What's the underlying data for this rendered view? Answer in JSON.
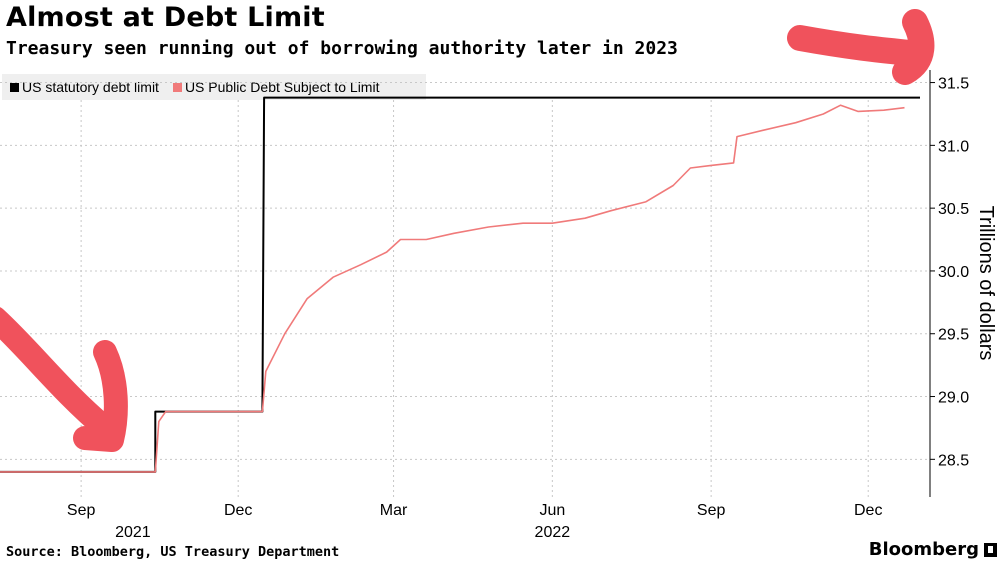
{
  "title": "Almost at Debt Limit",
  "subtitle": "Treasury seen running out of borrowing authority later in 2023",
  "source": "Source: Bloomberg, US Treasury Department",
  "brand": "Bloomberg",
  "colors": {
    "limit": "#000000",
    "debt": "#f07a7a",
    "annotation": "#f0525c",
    "grid": "#c8c8c8",
    "legend_bg": "#efefef"
  },
  "chart_data": {
    "type": "line",
    "title": "Almost at Debt Limit",
    "subtitle": "Treasury seen running out of borrowing authority later in 2023",
    "ylabel": "Trillions of dollars",
    "y_axis_side": "right",
    "ylim": [
      28.2,
      31.6
    ],
    "xlim": [
      "2021-07-16",
      "2022-12-31"
    ],
    "y_ticks": [
      28.5,
      29.0,
      29.5,
      30.0,
      30.5,
      31.0,
      31.5
    ],
    "y_tick_labels": [
      "28.5",
      "29.0",
      "29.5",
      "30.0",
      "30.5",
      "31.0",
      "31.5"
    ],
    "x_ticks": [
      {
        "date": "2021-09-01",
        "label": "Sep"
      },
      {
        "date": "2021-12-01",
        "label": "Dec"
      },
      {
        "date": "2022-03-01",
        "label": "Mar"
      },
      {
        "date": "2022-06-01",
        "label": "Jun"
      },
      {
        "date": "2022-09-01",
        "label": "Sep"
      },
      {
        "date": "2022-12-01",
        "label": "Dec"
      }
    ],
    "year_labels": [
      {
        "date": "2021-10-01",
        "label": "2021"
      },
      {
        "date": "2022-06-01",
        "label": "2022"
      }
    ],
    "grid": true,
    "legend_position": "top-left",
    "series": [
      {
        "name": "US statutory debt limit",
        "step": true,
        "points": [
          [
            "2021-07-16",
            28.4
          ],
          [
            "2021-10-14",
            28.4
          ],
          [
            "2021-10-14",
            28.88
          ],
          [
            "2021-12-15",
            28.88
          ],
          [
            "2021-12-16",
            31.38
          ],
          [
            "2022-12-31",
            31.38
          ]
        ]
      },
      {
        "name": "US Public Debt Subject to Limit",
        "points": [
          [
            "2021-07-16",
            28.4
          ],
          [
            "2021-10-14",
            28.4
          ],
          [
            "2021-10-16",
            28.8
          ],
          [
            "2021-10-20",
            28.88
          ],
          [
            "2021-12-15",
            28.88
          ],
          [
            "2021-12-17",
            29.2
          ],
          [
            "2021-12-28",
            29.5
          ],
          [
            "2022-01-10",
            29.78
          ],
          [
            "2022-01-25",
            29.95
          ],
          [
            "2022-02-10",
            30.05
          ],
          [
            "2022-02-25",
            30.15
          ],
          [
            "2022-03-05",
            30.25
          ],
          [
            "2022-03-20",
            30.25
          ],
          [
            "2022-04-05",
            30.3
          ],
          [
            "2022-04-25",
            30.35
          ],
          [
            "2022-05-15",
            30.38
          ],
          [
            "2022-06-01",
            30.38
          ],
          [
            "2022-06-20",
            30.42
          ],
          [
            "2022-07-05",
            30.48
          ],
          [
            "2022-07-25",
            30.55
          ],
          [
            "2022-08-10",
            30.68
          ],
          [
            "2022-08-20",
            30.82
          ],
          [
            "2022-09-01",
            30.84
          ],
          [
            "2022-09-14",
            30.86
          ],
          [
            "2022-09-16",
            31.07
          ],
          [
            "2022-10-01",
            31.12
          ],
          [
            "2022-10-20",
            31.18
          ],
          [
            "2022-11-05",
            31.25
          ],
          [
            "2022-11-15",
            31.32
          ],
          [
            "2022-11-25",
            31.27
          ],
          [
            "2022-12-10",
            31.28
          ],
          [
            "2022-12-22",
            31.3
          ]
        ]
      }
    ]
  }
}
